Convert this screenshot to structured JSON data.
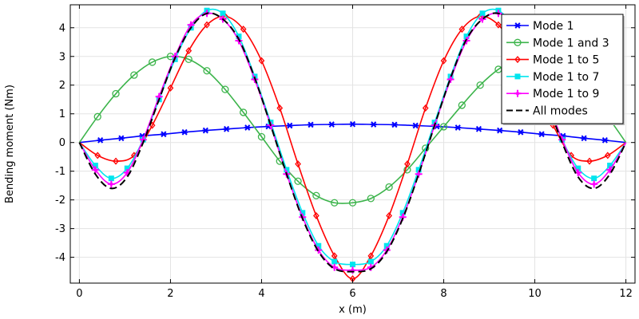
{
  "chart_data": {
    "type": "line",
    "title": "",
    "xlabel": "x (m)",
    "ylabel": "Bending moment (Nm)",
    "xlim": [
      -0.2,
      12.2
    ],
    "ylim": [
      -4.9,
      4.8
    ],
    "xticks": [
      0,
      2,
      4,
      6,
      8,
      10,
      12
    ],
    "xtick_labels": [
      "0",
      "2",
      "4",
      "6",
      "8",
      "10",
      "12"
    ],
    "yticks": [
      -4,
      -3,
      -2,
      -1,
      0,
      1,
      2,
      3,
      4
    ],
    "ytick_labels": [
      "-4",
      "-3",
      "-2",
      "-1",
      "0",
      "1",
      "2",
      "3",
      "4"
    ],
    "grid": true,
    "legend_position": "top-right",
    "series": [
      {
        "name": "Mode 1",
        "color": "#0000ff",
        "marker": "asterisk",
        "line": "solid",
        "x": [
          0,
          0.46,
          0.92,
          1.38,
          1.85,
          2.31,
          2.77,
          3.23,
          3.69,
          4.15,
          4.62,
          5.08,
          5.54,
          6.0,
          6.46,
          6.92,
          7.38,
          7.85,
          8.31,
          8.77,
          9.23,
          9.69,
          10.15,
          10.62,
          11.08,
          11.54,
          12.0
        ],
        "y": [
          0,
          0.08,
          0.15,
          0.23,
          0.29,
          0.36,
          0.42,
          0.47,
          0.52,
          0.56,
          0.59,
          0.62,
          0.63,
          0.64,
          0.63,
          0.62,
          0.59,
          0.56,
          0.52,
          0.47,
          0.42,
          0.36,
          0.29,
          0.23,
          0.15,
          0.08,
          0
        ]
      },
      {
        "name": "Mode 1 and 3",
        "color": "#3cb44b",
        "marker": "circle",
        "line": "solid",
        "x": [
          0,
          0.4,
          0.8,
          1.2,
          1.6,
          2.0,
          2.4,
          2.8,
          3.2,
          3.6,
          4.0,
          4.4,
          4.8,
          5.2,
          5.6,
          6.0,
          6.4,
          6.8,
          7.2,
          7.6,
          8.0,
          8.4,
          8.8,
          9.2,
          9.6,
          10.0,
          10.4,
          10.8,
          11.2,
          11.6,
          12.0
        ],
        "y": [
          0,
          0.9,
          1.7,
          2.35,
          2.8,
          3.0,
          2.9,
          2.5,
          1.85,
          1.05,
          0.2,
          -0.65,
          -1.35,
          -1.85,
          -2.1,
          -2.1,
          -1.95,
          -1.55,
          -0.95,
          -0.2,
          0.55,
          1.3,
          2.0,
          2.55,
          2.9,
          3.0,
          2.8,
          2.35,
          1.7,
          0.9,
          0
        ]
      },
      {
        "name": "Mode 1 to 5",
        "color": "#ff0000",
        "marker": "diamond",
        "line": "solid",
        "x": [
          0,
          0.4,
          0.8,
          1.2,
          1.6,
          2.0,
          2.4,
          2.8,
          3.2,
          3.6,
          4.0,
          4.4,
          4.8,
          5.2,
          5.6,
          6.0,
          6.4,
          6.8,
          7.2,
          7.6,
          8.0,
          8.4,
          8.8,
          9.2,
          9.6,
          10.0,
          10.4,
          10.8,
          11.2,
          11.6,
          12.0
        ],
        "y": [
          0,
          -0.45,
          -0.65,
          -0.45,
          0.6,
          1.9,
          3.2,
          4.1,
          4.4,
          3.95,
          2.85,
          1.2,
          -0.75,
          -2.55,
          -3.95,
          -4.75,
          -3.95,
          -2.55,
          -0.75,
          1.2,
          2.85,
          3.95,
          4.4,
          4.1,
          3.2,
          1.9,
          0.6,
          -0.45,
          -0.65,
          -0.45,
          0
        ]
      },
      {
        "name": "Mode 1 to 7",
        "color": "#00e5ee",
        "marker": "square",
        "line": "solid",
        "x": [
          0,
          0.35,
          0.7,
          1.05,
          1.4,
          1.75,
          2.1,
          2.45,
          2.8,
          3.15,
          3.5,
          3.85,
          4.2,
          4.55,
          4.9,
          5.25,
          5.6,
          6.0,
          6.4,
          6.75,
          7.1,
          7.45,
          7.8,
          8.15,
          8.5,
          8.85,
          9.2,
          9.55,
          9.9,
          10.25,
          10.6,
          10.95,
          11.3,
          11.65,
          12.0
        ],
        "y": [
          0,
          -0.8,
          -1.25,
          -0.9,
          0.1,
          1.5,
          2.9,
          4.0,
          4.6,
          4.5,
          3.7,
          2.3,
          0.7,
          -0.95,
          -2.45,
          -3.6,
          -4.15,
          -4.25,
          -4.15,
          -3.6,
          -2.45,
          -0.95,
          0.7,
          2.3,
          3.7,
          4.5,
          4.6,
          4.0,
          2.9,
          1.5,
          0.1,
          -0.9,
          -1.25,
          -0.8,
          0
        ]
      },
      {
        "name": "Mode 1 to 9",
        "color": "#ff00ff",
        "marker": "plus",
        "line": "solid",
        "x": [
          0,
          0.35,
          0.7,
          1.05,
          1.4,
          1.75,
          2.1,
          2.45,
          2.8,
          3.15,
          3.5,
          3.85,
          4.2,
          4.55,
          4.9,
          5.25,
          5.6,
          6.0,
          6.4,
          6.75,
          7.1,
          7.45,
          7.8,
          8.15,
          8.5,
          8.85,
          9.2,
          9.55,
          9.9,
          10.25,
          10.6,
          10.95,
          11.3,
          11.65,
          12.0
        ],
        "y": [
          0,
          -0.95,
          -1.45,
          -1.05,
          0.1,
          1.6,
          3.0,
          4.1,
          4.5,
          4.3,
          3.55,
          2.2,
          0.6,
          -1.1,
          -2.6,
          -3.75,
          -4.35,
          -4.45,
          -4.35,
          -3.75,
          -2.6,
          -1.1,
          0.6,
          2.2,
          3.55,
          4.3,
          4.5,
          4.1,
          3.0,
          1.6,
          0.1,
          -1.05,
          -1.45,
          -0.95,
          0
        ]
      },
      {
        "name": "All modes",
        "color": "#000000",
        "marker": "none",
        "line": "dashed",
        "x": [
          0,
          0.35,
          0.7,
          1.05,
          1.4,
          1.75,
          2.1,
          2.45,
          2.8,
          3.15,
          3.5,
          3.85,
          4.2,
          4.55,
          4.9,
          5.25,
          5.6,
          6.0,
          6.4,
          6.75,
          7.1,
          7.45,
          7.8,
          8.15,
          8.5,
          8.85,
          9.2,
          9.55,
          9.9,
          10.25,
          10.6,
          10.95,
          11.3,
          11.65,
          12.0
        ],
        "y": [
          0,
          -1.1,
          -1.6,
          -1.2,
          0.0,
          1.5,
          2.95,
          4.0,
          4.5,
          4.3,
          3.6,
          2.25,
          0.6,
          -1.1,
          -2.65,
          -3.8,
          -4.4,
          -4.5,
          -4.4,
          -3.8,
          -2.65,
          -1.1,
          0.6,
          2.25,
          3.6,
          4.3,
          4.5,
          4.0,
          2.95,
          1.5,
          0.0,
          -1.2,
          -1.6,
          -1.1,
          0
        ]
      }
    ]
  }
}
